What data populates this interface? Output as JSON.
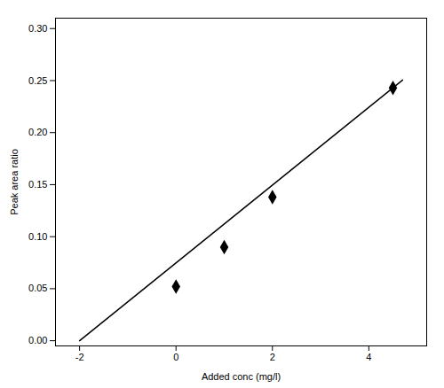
{
  "chart_data": {
    "type": "scatter",
    "xlabel": "Added conc (mg/l)",
    "ylabel": "Peak area ratio",
    "series": [
      {
        "type": "scatter",
        "x": [
          0,
          1,
          2,
          4.5
        ],
        "values": [
          0.052,
          0.09,
          0.138,
          0.243
        ],
        "color": "black",
        "marker": "diamond"
      },
      {
        "type": "line",
        "x": [
          -2.0,
          4.7
        ],
        "values": [
          0.0,
          0.2505
        ],
        "color": "black",
        "line_style": "solid"
      }
    ],
    "xlim": [
      -2.5,
      5.2
    ],
    "ylim": [
      -0.005,
      0.31
    ],
    "xticks": [
      -2,
      0,
      2,
      4
    ],
    "yticks": [
      {
        "value": 0.0,
        "label": "0.00"
      },
      {
        "value": 0.05,
        "label": "0.05"
      },
      {
        "value": 0.1,
        "label": "0.10"
      },
      {
        "value": 0.15,
        "label": "0.15"
      },
      {
        "value": 0.2,
        "label": "0.20"
      },
      {
        "value": 0.25,
        "label": "0.25"
      },
      {
        "value": 0.3,
        "label": "0.30"
      }
    ],
    "grid": false
  }
}
